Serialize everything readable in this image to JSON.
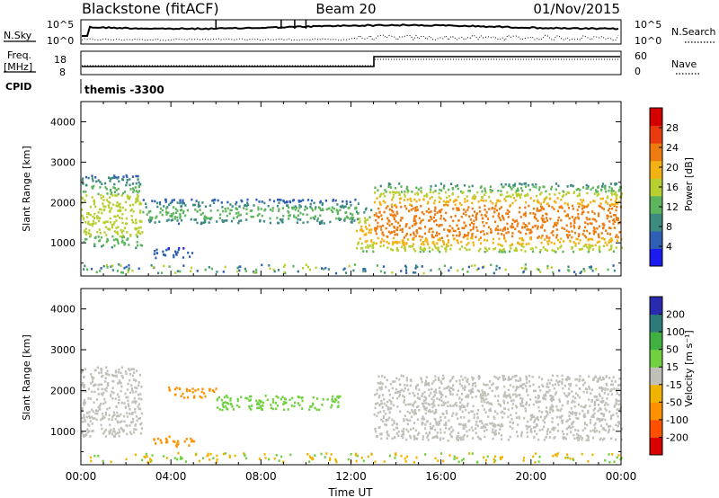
{
  "header": {
    "radar": "Blackstone (fitACF)",
    "beam": "Beam 20",
    "date": "01/Nov/2015"
  },
  "status": {
    "nsky_label": "N.Sky",
    "nsearch_label": "N.Search",
    "noise_ticks": [
      "10^5",
      "10^0"
    ],
    "freq_label_1": "Freq.",
    "freq_label_2": "[MHz]",
    "freq_ticks": [
      "18",
      "8"
    ],
    "nave_label": "Nave",
    "nave_ticks": [
      "60",
      "0"
    ],
    "cpid_label": "CPID",
    "cpid_value": "themis -3300"
  },
  "colors": {
    "power_scale": [
      "#1b1bf0",
      "#2f5fb4",
      "#3c8a80",
      "#5cb45c",
      "#b9cf30",
      "#f2b214",
      "#ee7b10",
      "#ea3b10",
      "#d40000"
    ],
    "velocity_scale": [
      "#d80000",
      "#ff5000",
      "#ff9000",
      "#f0b400",
      "#c0c0b8",
      "#70d040",
      "#40b040",
      "#2e7a7a",
      "#2a2ab0"
    ],
    "ground_scatter": "#c0c0b8"
  },
  "chart_data": [
    {
      "type": "heatmap",
      "title": "Power",
      "xlabel": "Time UT",
      "ylabel": "Slant Range [km]",
      "x_ticks": [
        "00:00",
        "04:00",
        "08:00",
        "12:00",
        "16:00",
        "20:00",
        "00:00"
      ],
      "x_range_hours": [
        0,
        24
      ],
      "ylim": [
        180,
        4500
      ],
      "y_ticks": [
        1000,
        2000,
        3000,
        4000
      ],
      "colorbar": {
        "label": "Power [dB]",
        "range": [
          0,
          32
        ],
        "ticks": [
          4,
          8,
          12,
          16,
          20,
          24,
          28
        ]
      },
      "scatter_bands": [
        {
          "hours": [
            0,
            2.7
          ],
          "range_km": [
            900,
            2700
          ],
          "peak_db": 20
        },
        {
          "hours": [
            2.7,
            12.3
          ],
          "range_km": [
            1500,
            2100
          ],
          "peak_db": 14
        },
        {
          "hours": [
            3.2,
            5.0
          ],
          "range_km": [
            650,
            900
          ],
          "peak_db": 8
        },
        {
          "hours": [
            12.2,
            13.0
          ],
          "range_km": [
            750,
            1900
          ],
          "peak_db": 22
        },
        {
          "hours": [
            13.0,
            24
          ],
          "range_km": [
            800,
            2500
          ],
          "peak_db": 28
        }
      ]
    },
    {
      "type": "heatmap",
      "title": "Velocity",
      "xlabel": "Time UT",
      "ylabel": "Slant Range [km]",
      "x_ticks": [
        "00:00",
        "04:00",
        "08:00",
        "12:00",
        "16:00",
        "20:00",
        "00:00"
      ],
      "x_range_hours": [
        0,
        24
      ],
      "ylim": [
        180,
        4500
      ],
      "y_ticks": [
        1000,
        2000,
        3000,
        4000
      ],
      "colorbar": {
        "label": "Velocity [m s⁻¹]",
        "tick_labels": [
          "200",
          "100",
          "50",
          "15",
          "-15",
          "-50",
          "-100",
          "-200"
        ]
      },
      "scatter_bands": [
        {
          "hours": [
            0,
            2.7
          ],
          "range_km": [
            900,
            2600
          ],
          "class": "ground"
        },
        {
          "hours": [
            3.8,
            6.0
          ],
          "range_km": [
            1850,
            2100
          ],
          "velocity": -70
        },
        {
          "hours": [
            6.0,
            11.5
          ],
          "range_km": [
            1550,
            1900
          ],
          "velocity": 40
        },
        {
          "hours": [
            3.2,
            5.0
          ],
          "range_km": [
            650,
            900
          ],
          "velocity": -60
        },
        {
          "hours": [
            13.0,
            24
          ],
          "range_km": [
            800,
            2400
          ],
          "class": "ground"
        }
      ]
    }
  ]
}
